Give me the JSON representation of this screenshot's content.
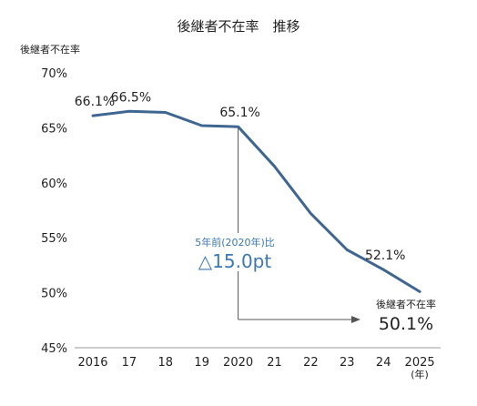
{
  "chart_data": {
    "type": "line",
    "title": "後継者不在率　推移",
    "ylabel": "後継者不在率",
    "xunit": "(年)",
    "ylim": [
      45,
      70
    ],
    "yticks": [
      45,
      50,
      55,
      60,
      65,
      70
    ],
    "ytick_labels": [
      "45%",
      "50%",
      "55%",
      "60%",
      "65%",
      "70%"
    ],
    "categories": [
      "2016",
      "17",
      "18",
      "19",
      "2020",
      "21",
      "22",
      "23",
      "24",
      "2025"
    ],
    "series": [
      {
        "values": [
          66.1,
          66.5,
          66.4,
          65.2,
          65.1,
          61.5,
          57.2,
          53.9,
          52.1,
          50.1
        ]
      }
    ],
    "data_labels": [
      {
        "index": 0,
        "text": "66.1%"
      },
      {
        "index": 1,
        "text": "66.5%"
      },
      {
        "index": 4,
        "text": "65.1%"
      },
      {
        "index": 8,
        "text": "52.1%"
      }
    ],
    "annotation": {
      "from_index": 4,
      "line1": "5年前(2020年)比",
      "line2": "△15.0pt",
      "end_label": "後継者不在率",
      "end_value": "50.1%"
    },
    "colors": {
      "line": "#3e6690",
      "annotation": "#3b78b4",
      "text": "#222222",
      "connector": "#555555"
    }
  }
}
